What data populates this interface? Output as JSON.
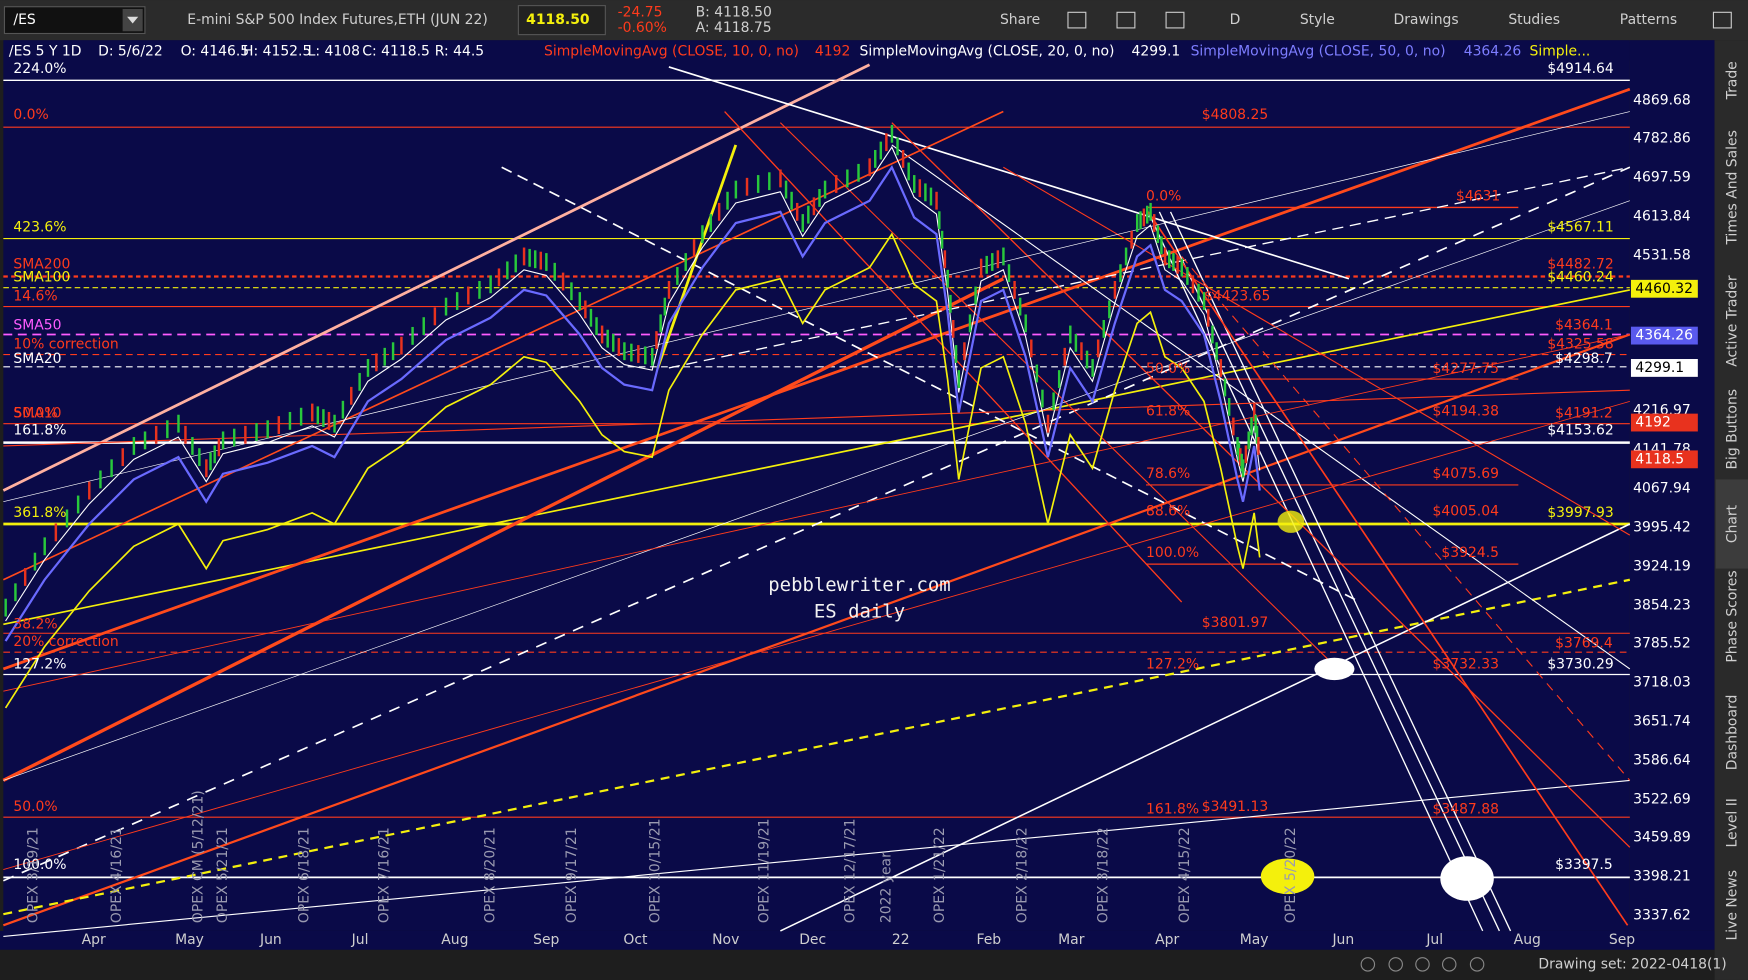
{
  "toolbar": {
    "symbol": "/ES",
    "description": "E-mini S&P 500 Index Futures,ETH (JUN 22)",
    "last": "4118.50",
    "change": "-24.75",
    "change_pct": "-0.60%",
    "bid": "B: 4118.50",
    "ask": "A: 4118.75",
    "buttons": [
      "Share",
      "D",
      "Style",
      "Drawings",
      "Studies",
      "Patterns"
    ]
  },
  "legend": {
    "symbol": "/ES 5 Y 1D",
    "date": "D: 5/6/22",
    "open": "O: 4146.5",
    "high": "H: 4152.5",
    "low": "L: 4108",
    "close": "C: 4118.5",
    "range": "R: 44.5",
    "studies": [
      {
        "name": "SimpleMovingAvg (CLOSE, 10, 0, no)",
        "value": "4192"
      },
      {
        "name": "SimpleMovingAvg (CLOSE, 20, 0, no)",
        "value": "4299.1"
      },
      {
        "name": "SimpleMovingAvg (CLOSE, 50, 0, no)",
        "value": "4364.26"
      },
      {
        "name": "Simple..."
      }
    ]
  },
  "price_axis": {
    "labels": [
      "4869.68",
      "4782.86",
      "4697.59",
      "4613.84",
      "4531.58",
      "4216.97",
      "4141.78",
      "4067.94",
      "3995.42",
      "3924.19",
      "3854.23",
      "3785.52",
      "3718.03",
      "3651.74",
      "3586.64",
      "3522.69",
      "3459.89",
      "3398.21",
      "3337.62"
    ],
    "markers": [
      "4460.32",
      "4364.26",
      "4299.1",
      "4192",
      "4118.5"
    ]
  },
  "time_axis": [
    "Apr",
    "May",
    "Jun",
    "Jul",
    "Aug",
    "Sep",
    "Oct",
    "Nov",
    "Dec",
    "22",
    "Feb",
    "Mar",
    "Apr",
    "May",
    "Jun",
    "Jul",
    "Aug",
    "Sep"
  ],
  "left_labels": [
    "224.0%",
    "0.0%",
    "423.6%",
    "SMA200",
    "SMA100",
    "14.6%",
    "SMA50",
    "10% correction",
    "SMA20",
    "SMA10",
    "50.0%",
    "161.8%",
    "361.8%",
    "38.2%",
    "20% correction",
    "127.2%",
    "50.0%",
    "100.0%"
  ],
  "right_labels": [
    "$4914.64",
    "$4808.25",
    "0.0%",
    "$4631",
    "$4567.11",
    "$4482.72",
    "$4460.24",
    "$4423.65",
    "$4364.1",
    "$4325.58",
    "$4298.7",
    "50.0%",
    "$4277.75",
    "61.8%",
    "$4194.38",
    "$4191.2",
    "$4153.62",
    "78.6%",
    "$4075.69",
    "88.6%",
    "$4005.04",
    "$3997.93",
    "100.0%",
    "$3924.5",
    "$3801.97",
    "$3769.4",
    "127.2%",
    "$3732.33",
    "$3730.29",
    "161.8%",
    "$3491.13",
    "$3487.88",
    "$3397.5"
  ],
  "opex_labels": [
    "OPEX 3/19/21",
    "OPEX 4/16/21",
    "OPEX CM (5/12/21)",
    "OPEX 5/21/21",
    "OPEX 6/18/21",
    "OPEX 7/16/21",
    "OPEX 8/20/21",
    "OPEX 9/17/21",
    "OPEX 10/15/21",
    "OPEX 11/19/21",
    "OPEX 12/17/21",
    "2022 year",
    "OPEX 1/21/22",
    "OPEX 2/18/22",
    "OPEX 3/18/22",
    "OPEX 4/15/22",
    "OPEX 5/20/22"
  ],
  "watermark": [
    "pebblewriter.com",
    "ES daily"
  ],
  "sidebar": [
    "Trade",
    "Times And Sales",
    "Active Trader",
    "Big Buttons",
    "Chart",
    "Phase Scores",
    "Dashboard",
    "Level II",
    "Live News"
  ],
  "footer": "Drawing set: 2022-0418(1)"
}
